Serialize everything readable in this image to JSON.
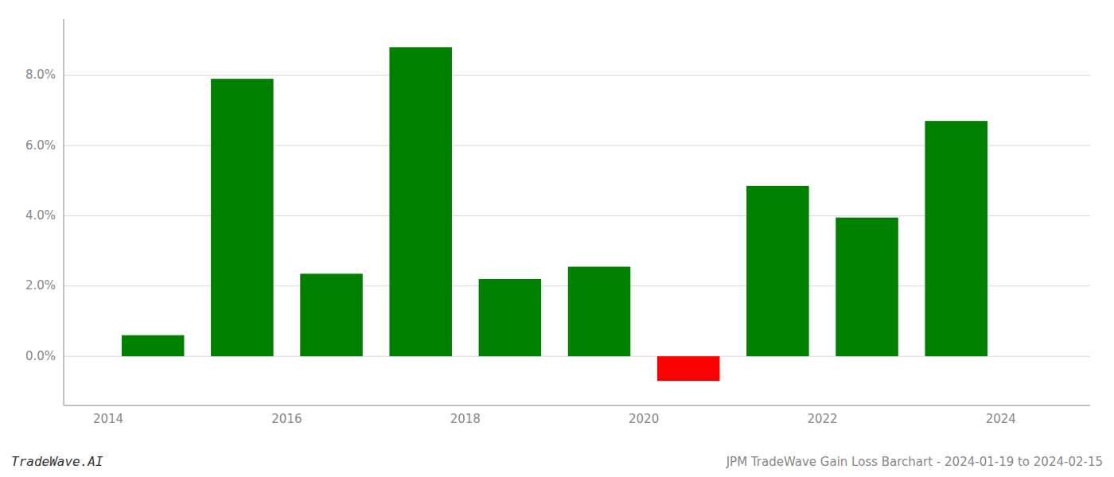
{
  "chart_data": {
    "type": "bar",
    "title": "JPM TradeWave Gain Loss Barchart - 2024-01-19 to 2024-02-15",
    "annotations": [
      "TradeWave.AI"
    ],
    "x": [
      2014.5,
      2015.5,
      2016.5,
      2017.5,
      2018.5,
      2019.5,
      2020.5,
      2021.5,
      2022.5,
      2023.5
    ],
    "values": [
      0.006,
      0.079,
      0.0235,
      0.088,
      0.022,
      0.0255,
      -0.007,
      0.0485,
      0.0395,
      0.067
    ],
    "colors": [
      "#008000",
      "#008000",
      "#008000",
      "#008000",
      "#008000",
      "#008000",
      "#ff0000",
      "#008000",
      "#008000",
      "#008000"
    ],
    "xlim": [
      2013.5,
      2025.0
    ],
    "xticks": [
      2014,
      2016,
      2018,
      2020,
      2022,
      2024
    ],
    "ylim": [
      -0.014,
      0.096
    ],
    "yticks": [
      {
        "value": 0.0,
        "label": "0.0%"
      },
      {
        "value": 0.02,
        "label": "2.0%"
      },
      {
        "value": 0.04,
        "label": "4.0%"
      },
      {
        "value": 0.06,
        "label": "6.0%"
      },
      {
        "value": 0.08,
        "label": "8.0%"
      }
    ],
    "grid": true
  }
}
